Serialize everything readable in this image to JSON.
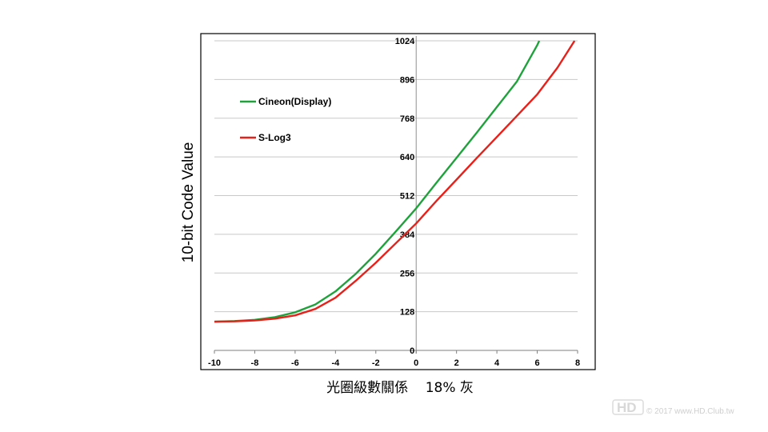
{
  "chart_data": {
    "type": "line",
    "ylabel": "10-bit Code Value",
    "xlabel": "光圈級數關係    18% 灰",
    "xlim": [
      -10,
      8
    ],
    "ylim": [
      0,
      1024
    ],
    "x_ticks": [
      "-10",
      "-8",
      "-6",
      "-4",
      "-2",
      "0",
      "2",
      "4",
      "6",
      "8"
    ],
    "y_ticks": [
      "0",
      "128",
      "256",
      "384",
      "512",
      "640",
      "768",
      "896",
      "1024"
    ],
    "grid": "horizontal",
    "legend_position": "top-left",
    "series": [
      {
        "name": "Cineon(Display)",
        "color": "#1fa23c",
        "x": [
          -10,
          -9,
          -8,
          -7,
          -6,
          -5,
          -4,
          -3,
          -2,
          -1,
          0,
          1,
          2,
          3,
          4,
          5,
          6,
          6.1
        ],
        "y": [
          95,
          97,
          101,
          110,
          126,
          152,
          195,
          253,
          320,
          394,
          470,
          554,
          637,
          720,
          805,
          890,
          1010,
          1024
        ]
      },
      {
        "name": "S-Log3",
        "color": "#e8201a",
        "x": [
          -10,
          -9,
          -8,
          -7,
          -6,
          -5,
          -4,
          -3,
          -2,
          -1,
          0,
          1,
          2,
          3,
          4,
          5,
          6,
          7,
          7.85
        ],
        "y": [
          95,
          96,
          99,
          105,
          116,
          137,
          174,
          230,
          290,
          355,
          420,
          494,
          565,
          636,
          706,
          776,
          847,
          935,
          1024
        ]
      }
    ]
  },
  "watermark": {
    "logo": "HD",
    "text": "© 2017 www.HD.Club.tw"
  }
}
